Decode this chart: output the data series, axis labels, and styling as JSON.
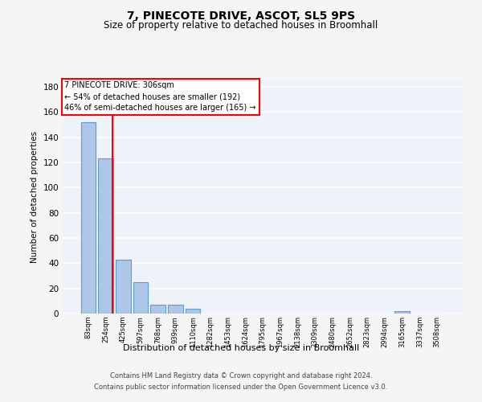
{
  "title1": "7, PINECOTE DRIVE, ASCOT, SL5 9PS",
  "title2": "Size of property relative to detached houses in Broomhall",
  "xlabel": "Distribution of detached houses by size in Broomhall",
  "ylabel": "Number of detached properties",
  "bin_labels": [
    "83sqm",
    "254sqm",
    "425sqm",
    "597sqm",
    "768sqm",
    "939sqm",
    "1110sqm",
    "1282sqm",
    "1453sqm",
    "1624sqm",
    "1795sqm",
    "1967sqm",
    "2138sqm",
    "2309sqm",
    "2480sqm",
    "2652sqm",
    "2823sqm",
    "2994sqm",
    "3165sqm",
    "3337sqm",
    "3508sqm"
  ],
  "bar_heights": [
    152,
    123,
    43,
    25,
    7,
    7,
    4,
    0,
    0,
    0,
    0,
    0,
    0,
    0,
    0,
    0,
    0,
    0,
    2,
    0,
    0
  ],
  "bar_color": "#aec6e8",
  "bar_edgecolor": "#5a9fd4",
  "bar_linewidth": 0.8,
  "vline_x": 1.4,
  "vline_color": "red",
  "annotation_line1": "7 PINECOTE DRIVE: 306sqm",
  "annotation_line2": "← 54% of detached houses are smaller (192)",
  "annotation_line3": "46% of semi-detached houses are larger (165) →",
  "ylim": [
    0,
    185
  ],
  "yticks": [
    0,
    20,
    40,
    60,
    80,
    100,
    120,
    140,
    160,
    180
  ],
  "background_color": "#eef2f9",
  "grid_color": "#ffffff",
  "fig_facecolor": "#f5f5f5",
  "footer1": "Contains HM Land Registry data © Crown copyright and database right 2024.",
  "footer2": "Contains public sector information licensed under the Open Government Licence v3.0."
}
